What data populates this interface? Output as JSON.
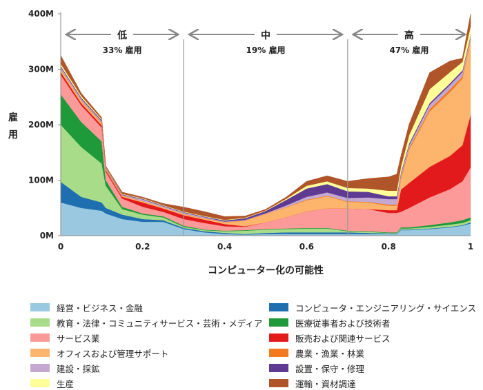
{
  "chart_data": {
    "type": "area",
    "stacked": true,
    "xlabel": "コンピューター化の可能性",
    "ylabel": "雇用",
    "xlim": [
      0,
      1
    ],
    "ylim": [
      0,
      400
    ],
    "xticks": [
      "0",
      "0.2",
      "0.4",
      "0.6",
      "0.8",
      "1"
    ],
    "yticks": [
      "0M",
      "100M",
      "200M",
      "300M",
      "400M"
    ],
    "regions": [
      {
        "label": "低",
        "share": "33% 雇用",
        "range": [
          0,
          0.3
        ]
      },
      {
        "label": "中",
        "share": "19% 雇用",
        "range": [
          0.3,
          0.7
        ]
      },
      {
        "label": "高",
        "share": "47% 雇用",
        "range": [
          0.7,
          1
        ]
      }
    ],
    "x": [
      0,
      0.05,
      0.1,
      0.11,
      0.15,
      0.2,
      0.25,
      0.3,
      0.35,
      0.4,
      0.45,
      0.5,
      0.55,
      0.6,
      0.65,
      0.7,
      0.75,
      0.8,
      0.82,
      0.83,
      0.85,
      0.9,
      0.95,
      0.98,
      1
    ],
    "series": [
      {
        "name": "経営・ビジネス・金融",
        "color": "#9ac8e0",
        "values": [
          60,
          50,
          45,
          40,
          30,
          25,
          25,
          12,
          6,
          3,
          2,
          3,
          3,
          3,
          3,
          3,
          3,
          3,
          3,
          10,
          10,
          12,
          15,
          18,
          22
        ]
      },
      {
        "name": "コンピュータ・エンジニアリング・サイエンス",
        "color": "#1f6fb0",
        "values": [
          37,
          20,
          15,
          10,
          8,
          5,
          3,
          2,
          2,
          2,
          1,
          2,
          3,
          3,
          3,
          3,
          2,
          1,
          1,
          1,
          1,
          1,
          1,
          1,
          2
        ]
      },
      {
        "name": "教育・法律・コミュニティサービス・芸術・メディア",
        "color": "#a8dc88",
        "values": [
          103,
          90,
          70,
          40,
          10,
          8,
          5,
          2,
          2,
          3,
          6,
          6,
          6,
          7,
          7,
          2,
          2,
          1,
          1,
          2,
          2,
          3,
          4,
          4,
          4
        ]
      },
      {
        "name": "医療従事者および技術者",
        "color": "#1f9a3a",
        "values": [
          55,
          45,
          40,
          10,
          4,
          2,
          2,
          2,
          1,
          1,
          1,
          1,
          1,
          1,
          1,
          1,
          1,
          1,
          1,
          2,
          2,
          3,
          4,
          5,
          5
        ]
      },
      {
        "name": "サービス業",
        "color": "#fb9a99",
        "values": [
          35,
          30,
          25,
          15,
          15,
          12,
          8,
          12,
          12,
          8,
          6,
          12,
          20,
          30,
          35,
          40,
          40,
          35,
          35,
          28,
          35,
          50,
          60,
          70,
          90
        ]
      },
      {
        "name": "販売および関連サービス",
        "color": "#e31a1c",
        "values": [
          5,
          4,
          4,
          3,
          3,
          8,
          6,
          7,
          6,
          4,
          1,
          0,
          0,
          0,
          0,
          0,
          0,
          5,
          5,
          40,
          45,
          55,
          60,
          65,
          95
        ]
      },
      {
        "name": "オフィスおよび管理サポート",
        "color": "#fdb46c",
        "values": [
          5,
          4,
          4,
          2,
          2,
          2,
          2,
          2,
          2,
          3,
          10,
          15,
          18,
          20,
          22,
          12,
          12,
          8,
          8,
          20,
          60,
          100,
          115,
          120,
          135
        ]
      },
      {
        "name": "農業・漁業・林業",
        "color": "#f47a20",
        "values": [
          1,
          1,
          1,
          0.5,
          0.5,
          0.5,
          0,
          0.5,
          0.5,
          0.5,
          0.5,
          0.5,
          0.5,
          1,
          1,
          1,
          1,
          2,
          2,
          3,
          3,
          4,
          5,
          4,
          3
        ]
      },
      {
        "name": "建設・採鉱",
        "color": "#c5a8d2",
        "values": [
          3,
          3,
          2,
          1,
          1,
          3,
          2,
          2,
          2,
          1,
          1,
          1,
          3,
          5,
          6,
          6,
          8,
          10,
          10,
          5,
          5,
          8,
          8,
          8,
          4
        ]
      },
      {
        "name": "設置・保守・修理",
        "color": "#5e3a92",
        "values": [
          2,
          2,
          2,
          1,
          1,
          1,
          1,
          1,
          1,
          2,
          3,
          4,
          10,
          15,
          15,
          12,
          10,
          5,
          5,
          3,
          3,
          3,
          3,
          3,
          2
        ]
      },
      {
        "name": "生産",
        "color": "#ffff99",
        "values": [
          4,
          3,
          2,
          1,
          1,
          1,
          1,
          1,
          1,
          1,
          1,
          1,
          2,
          5,
          5,
          6,
          6,
          10,
          10,
          10,
          15,
          25,
          20,
          15,
          15
        ]
      },
      {
        "name": "運輸・資材調達",
        "color": "#b0552a",
        "values": [
          15,
          5,
          3,
          2,
          3,
          2,
          3,
          8,
          8,
          6,
          3,
          2,
          3,
          8,
          10,
          12,
          18,
          25,
          30,
          20,
          20,
          30,
          20,
          7,
          23
        ]
      }
    ]
  },
  "legend_order_left": [
    0,
    2,
    4,
    6,
    8,
    10
  ],
  "legend_order_right": [
    1,
    3,
    5,
    7,
    9,
    11
  ]
}
